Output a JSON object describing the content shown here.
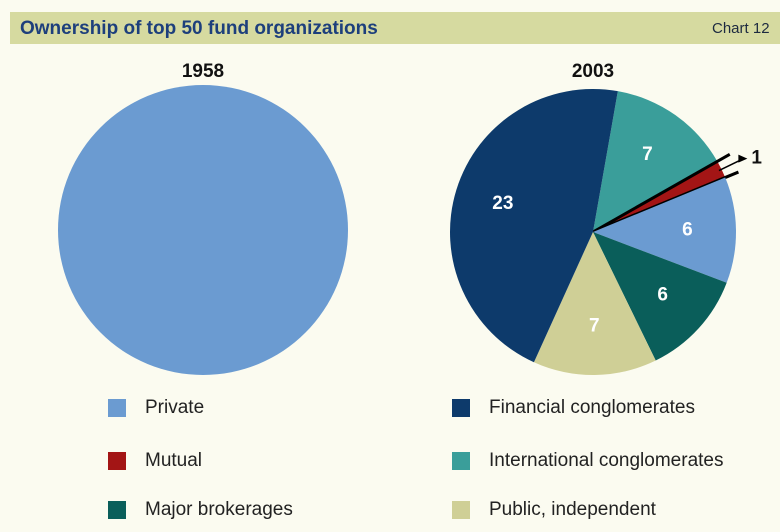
{
  "header": {
    "title": "Ownership of top 50 fund organizations",
    "label": "Chart 12"
  },
  "chart_data": [
    {
      "type": "pie",
      "title": "1958",
      "categories": [
        "Private"
      ],
      "values": [
        50
      ],
      "colors": [
        "#6b9bd1"
      ],
      "data_labels": false
    },
    {
      "type": "pie",
      "title": "2003",
      "categories": [
        "International conglomerates",
        "Mutual",
        "Private",
        "Major brokerages",
        "Public, independent",
        "Financial conglomerates"
      ],
      "values": [
        7,
        1,
        6,
        6,
        7,
        23
      ],
      "colors": [
        "#3a9e9a",
        "#a31515",
        "#6b9bd1",
        "#0a5e5a",
        "#cfcf96",
        "#0d3a6b"
      ],
      "data_labels": true
    }
  ]
}
